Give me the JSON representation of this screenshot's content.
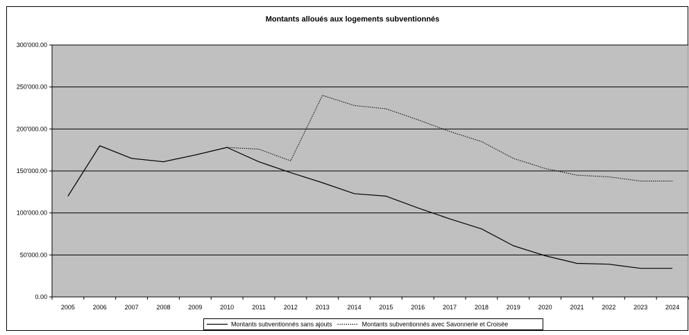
{
  "chart_data": {
    "type": "line",
    "title": "Montants alloués aux logements subventionnés",
    "xlabel": "",
    "ylabel": "",
    "x": [
      "2005",
      "2006",
      "2007",
      "2008",
      "2009",
      "2010",
      "2011",
      "2012",
      "2013",
      "2014",
      "2015",
      "2016",
      "2017",
      "2018",
      "2019",
      "2020",
      "2021",
      "2022",
      "2023",
      "2024"
    ],
    "ylim": [
      0,
      300000
    ],
    "y_ticks": [
      0,
      50000,
      100000,
      150000,
      200000,
      250000,
      300000
    ],
    "y_tick_labels": [
      "0.00",
      "50'000.00",
      "100'000.00",
      "150'000.00",
      "200'000.00",
      "250'000.00",
      "300'000.00"
    ],
    "grid": "horizontal",
    "legend_position": "bottom",
    "plot_background": "#c0c0c0",
    "series": [
      {
        "name": "Montants subventionnés sans ajouts",
        "style": "solid",
        "color": "#000000",
        "values": [
          120000,
          180000,
          165000,
          161000,
          169000,
          178000,
          161000,
          148000,
          136000,
          123000,
          120000,
          106000,
          93000,
          81000,
          61000,
          49000,
          40000,
          39000,
          34000,
          34000
        ]
      },
      {
        "name": "Montants subventionnés avec Savonnerie et Croisée",
        "style": "dotted",
        "color": "#000000",
        "values": [
          120000,
          180000,
          165000,
          161000,
          169000,
          178000,
          176000,
          162000,
          240000,
          228000,
          224000,
          211000,
          197000,
          185000,
          165000,
          153000,
          145000,
          143000,
          138000,
          138000
        ]
      }
    ]
  }
}
